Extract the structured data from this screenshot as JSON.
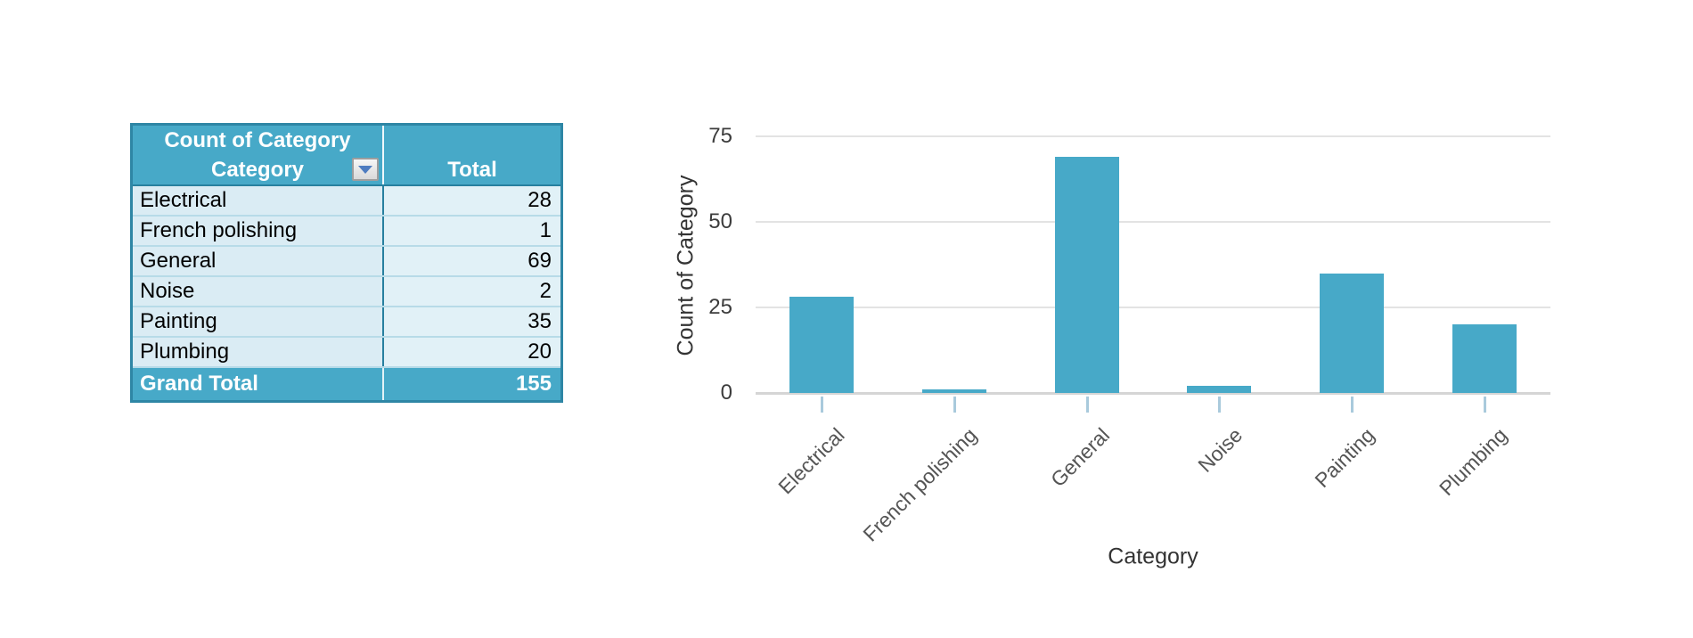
{
  "pivot_table": {
    "title": "Count of Category",
    "row_field_label": "Category",
    "value_column_label": "Total",
    "filter_icon": "dropdown-arrow-icon",
    "rows": [
      {
        "category": "Electrical",
        "total": "28"
      },
      {
        "category": "French polishing",
        "total": "1"
      },
      {
        "category": "General",
        "total": "69"
      },
      {
        "category": "Noise",
        "total": "2"
      },
      {
        "category": "Painting",
        "total": "35"
      },
      {
        "category": "Plumbing",
        "total": "20"
      }
    ],
    "grand_total_label": "Grand Total",
    "grand_total_value": "155"
  },
  "chart_data": {
    "type": "bar",
    "title": "",
    "categories": [
      "Electrical",
      "French polishing",
      "General",
      "Noise",
      "Painting",
      "Plumbing"
    ],
    "values": [
      28,
      1,
      69,
      2,
      35,
      20
    ],
    "xlabel": "Category",
    "ylabel": "Count of Category",
    "yticks": [
      0,
      25,
      50,
      75
    ],
    "ylim": [
      0,
      75
    ],
    "grid": true,
    "legend": false,
    "x_label_rotation_deg": -45,
    "bar_color": "#47A9C8"
  },
  "colors": {
    "teal": "#47A9C8",
    "teal_border": "#2E86A5",
    "bar_fill": "#47A9C8",
    "row_bg": "#DAECF4",
    "row_bg_total": "#E1F1F7",
    "row_separator": "#B7DBE8",
    "column_divider": "#27809F",
    "gridline": "#E3E3E3",
    "axis_line": "#D5D5D5",
    "tick_mark": "#A9CADC",
    "axis_label_color": "#333333",
    "tick_label_color": "#3C3C3C",
    "x_category_label_color": "#555555",
    "dropdown_triangle": "#4E7CC0"
  }
}
